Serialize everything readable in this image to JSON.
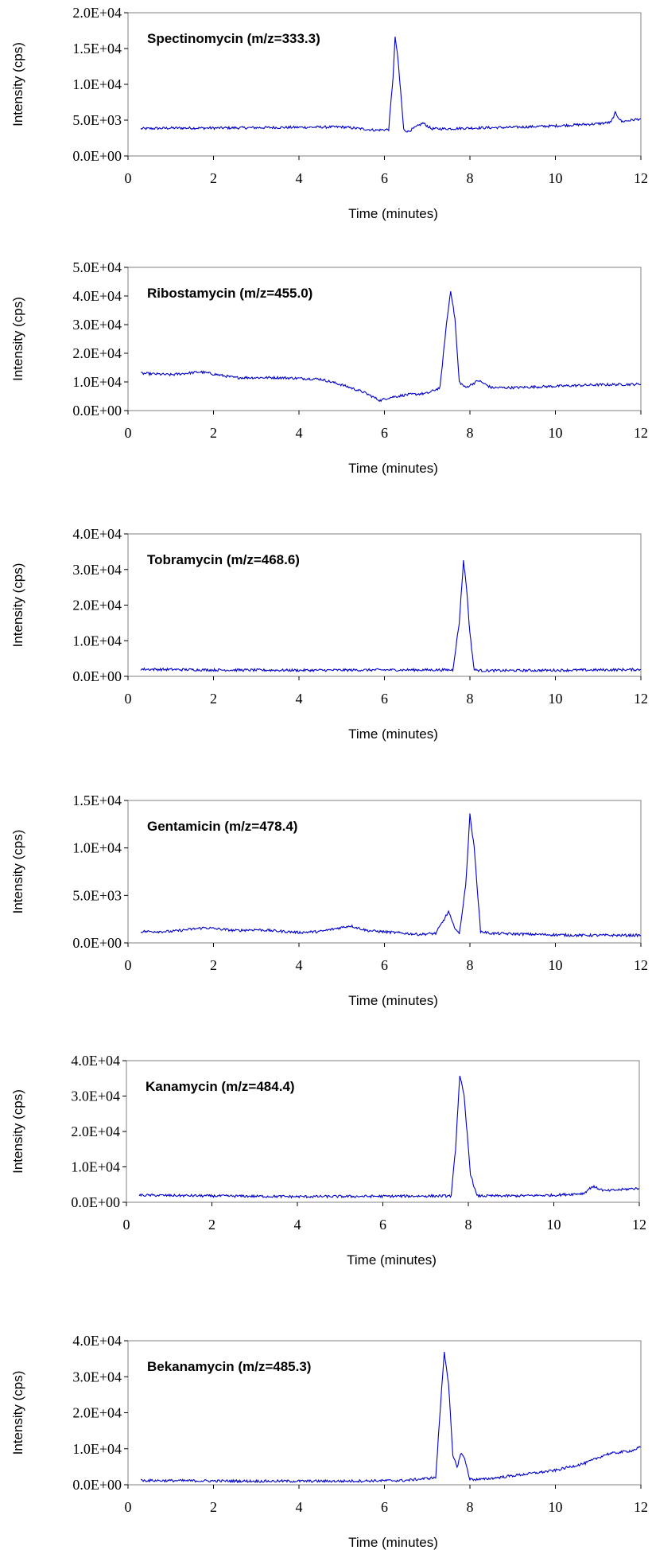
{
  "chart_data": [
    {
      "type": "line",
      "title": "Spectinomycin (m/z=333.3)",
      "xlabel": "Time (minutes)",
      "ylabel": "Intensity (cps)",
      "xlim": [
        0,
        12
      ],
      "ylim": [
        0,
        20000
      ],
      "xticks": [
        "0",
        "2",
        "4",
        "6",
        "8",
        "10",
        "12"
      ],
      "yticks": [
        "0.0E+00",
        "5.0E+03",
        "1.0E+04",
        "1.5E+04",
        "2.0E+04"
      ],
      "series_color": "#0000cc",
      "grid": false,
      "series": [
        {
          "x": [
            0.3,
            1.0,
            2.0,
            3.0,
            4.0,
            5.0,
            5.8,
            6.1,
            6.2,
            6.25,
            6.3,
            6.38,
            6.45,
            6.55,
            6.7,
            6.9,
            7.1,
            7.5,
            8.0,
            9.0,
            10.0,
            11.0,
            11.3,
            11.4,
            11.55,
            12.0
          ],
          "y": [
            3800,
            3900,
            3900,
            3950,
            4000,
            4050,
            3600,
            3700,
            11000,
            16500,
            14500,
            9000,
            3700,
            3400,
            3900,
            4600,
            3800,
            3800,
            3900,
            4000,
            4200,
            4500,
            4700,
            6000,
            4800,
            5200
          ]
        }
      ]
    },
    {
      "type": "line",
      "title": "Ribostamycin (m/z=455.0)",
      "xlabel": "Time (minutes)",
      "ylabel": "Intensity (cps)",
      "xlim": [
        0,
        12
      ],
      "ylim": [
        0,
        50000
      ],
      "xticks": [
        "0",
        "2",
        "4",
        "6",
        "8",
        "10",
        "12"
      ],
      "yticks": [
        "0.0E+00",
        "1.0E+04",
        "2.0E+04",
        "3.0E+04",
        "4.0E+04",
        "5.0E+04"
      ],
      "series_color": "#0000cc",
      "grid": false,
      "series": [
        {
          "x": [
            0.3,
            1.0,
            1.7,
            2.5,
            3.5,
            4.5,
            5.0,
            5.5,
            5.9,
            6.1,
            6.5,
            7.0,
            7.3,
            7.45,
            7.55,
            7.65,
            7.75,
            7.9,
            8.2,
            8.5,
            9.0,
            10.0,
            11.0,
            12.0
          ],
          "y": [
            13000,
            12500,
            13500,
            11500,
            11500,
            11000,
            9000,
            6500,
            3500,
            4500,
            5500,
            6000,
            8000,
            30000,
            42000,
            32000,
            10000,
            8000,
            10500,
            8000,
            8000,
            8500,
            9000,
            9200
          ]
        }
      ]
    },
    {
      "type": "line",
      "title": "Tobramycin (m/z=468.6)",
      "xlabel": "Time (minutes)",
      "ylabel": "Intensity (cps)",
      "xlim": [
        0,
        12
      ],
      "ylim": [
        0,
        40000
      ],
      "xticks": [
        "0",
        "2",
        "4",
        "6",
        "8",
        "10",
        "12"
      ],
      "yticks": [
        "0.0E+00",
        "1.0E+04",
        "2.0E+04",
        "3.0E+04",
        "4.0E+04"
      ],
      "series_color": "#0000cc",
      "grid": false,
      "series": [
        {
          "x": [
            0.3,
            2.0,
            4.0,
            6.0,
            7.6,
            7.75,
            7.85,
            7.92,
            8.0,
            8.1,
            8.3,
            10.0,
            12.0
          ],
          "y": [
            2000,
            1800,
            1700,
            1800,
            1800,
            15000,
            32500,
            25000,
            12000,
            1800,
            1600,
            1700,
            1900
          ]
        }
      ]
    },
    {
      "type": "line",
      "title": "Gentamicin (m/z=478.4)",
      "xlabel": "Time (minutes)",
      "ylabel": "Intensity (cps)",
      "xlim": [
        0,
        12
      ],
      "ylim": [
        0,
        15000
      ],
      "xticks": [
        "0",
        "2",
        "4",
        "6",
        "8",
        "10",
        "12"
      ],
      "yticks": [
        "0.0E+00",
        "5.0E+03",
        "1.0E+04",
        "1.5E+04"
      ],
      "series_color": "#0000cc",
      "grid": false,
      "series": [
        {
          "x": [
            0.3,
            1.0,
            1.8,
            2.5,
            3.0,
            4.0,
            4.5,
            5.2,
            5.6,
            6.2,
            6.8,
            7.2,
            7.4,
            7.5,
            7.6,
            7.75,
            7.9,
            8.0,
            8.1,
            8.25,
            8.5,
            9.5,
            10.5,
            12.0
          ],
          "y": [
            1200,
            1200,
            1600,
            1300,
            1400,
            1100,
            1200,
            1800,
            1300,
            1100,
            900,
            1000,
            2500,
            3300,
            2000,
            900,
            6000,
            13500,
            10000,
            1200,
            1000,
            900,
            800,
            800
          ]
        }
      ]
    },
    {
      "type": "line",
      "title": "Kanamycin (m/z=484.4)",
      "xlabel": "Time (minutes)",
      "ylabel": "Intensity (cps)",
      "xlim": [
        0,
        12
      ],
      "ylim": [
        0,
        40000
      ],
      "xticks": [
        "0",
        "2",
        "4",
        "6",
        "8",
        "10",
        "12"
      ],
      "yticks": [
        "0.0E+00",
        "1.0E+04",
        "2.0E+04",
        "3.0E+04",
        "4.0E+04"
      ],
      "series_color": "#0000cc",
      "grid": false,
      "series": [
        {
          "x": [
            0.3,
            2.0,
            4.0,
            6.0,
            7.6,
            7.7,
            7.8,
            7.9,
            8.05,
            8.2,
            9.0,
            10.0,
            10.7,
            10.9,
            11.2,
            12.0
          ],
          "y": [
            2000,
            1800,
            1600,
            1700,
            1800,
            15000,
            36000,
            30000,
            8000,
            1800,
            1800,
            2000,
            2500,
            4500,
            3200,
            4000
          ]
        }
      ]
    },
    {
      "type": "line",
      "title": "Bekanamycin (m/z=485.3)",
      "xlabel": "Time (minutes)",
      "ylabel": "Intensity (cps)",
      "xlim": [
        0,
        12
      ],
      "ylim": [
        0,
        40000
      ],
      "xticks": [
        "0",
        "2",
        "4",
        "6",
        "8",
        "10",
        "12"
      ],
      "yticks": [
        "0.0E+00",
        "1.0E+04",
        "2.0E+04",
        "3.0E+04",
        "4.0E+04"
      ],
      "series_color": "#0000cc",
      "grid": false,
      "series": [
        {
          "x": [
            0.3,
            1.5,
            3.0,
            5.0,
            6.5,
            7.2,
            7.3,
            7.4,
            7.5,
            7.6,
            7.7,
            7.8,
            7.88,
            8.0,
            8.3,
            9.0,
            10.0,
            10.7,
            11.2,
            11.8,
            12.0
          ],
          "y": [
            1200,
            1100,
            1000,
            1000,
            1200,
            2000,
            20000,
            37000,
            28000,
            8000,
            5000,
            9000,
            7000,
            1500,
            1500,
            2500,
            4000,
            6000,
            8500,
            9500,
            10500
          ]
        }
      ]
    }
  ]
}
